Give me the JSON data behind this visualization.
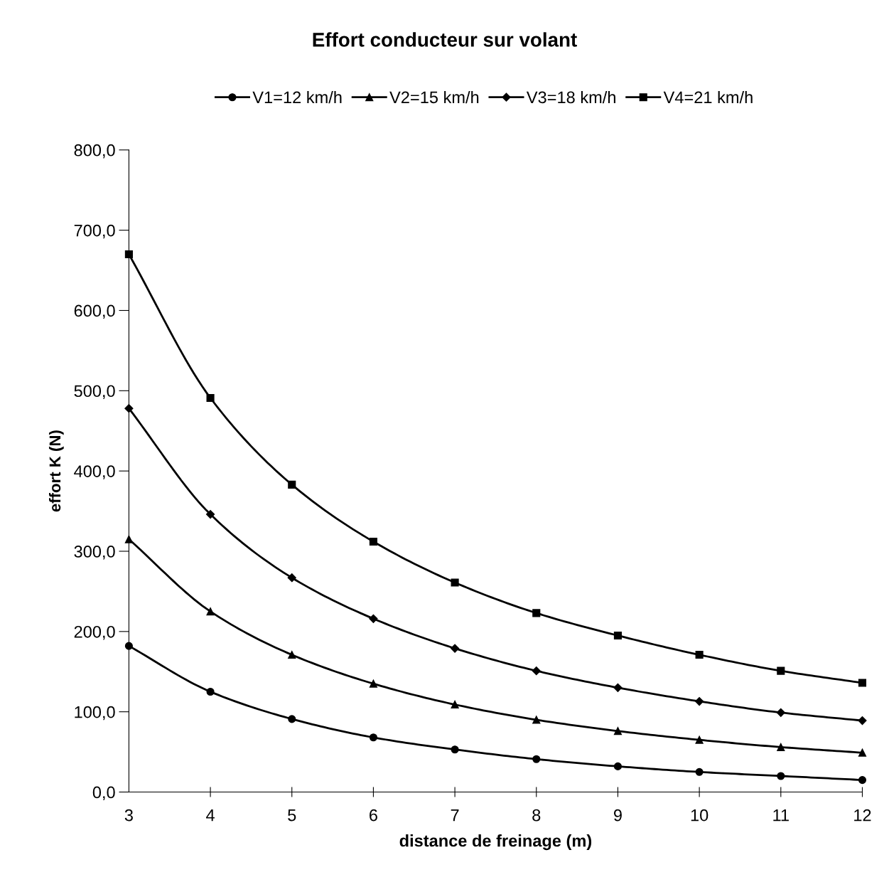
{
  "chart_data": {
    "type": "line",
    "title": "Effort conducteur sur volant",
    "xlabel": "distance de freinage (m)",
    "ylabel": "effort K (N)",
    "x": [
      3,
      4,
      5,
      6,
      7,
      8,
      9,
      10,
      11,
      12
    ],
    "series": [
      {
        "name": "V1=12 km/h",
        "color": "#000000",
        "marker": "circle",
        "values": [
          182,
          125,
          91,
          68,
          53,
          41,
          32,
          25,
          20,
          15
        ]
      },
      {
        "name": "V2=15 km/h",
        "color": "#000000",
        "marker": "triangle",
        "values": [
          315,
          225,
          171,
          135,
          109,
          90,
          76,
          65,
          56,
          49
        ]
      },
      {
        "name": "V3=18 km/h",
        "color": "#000000",
        "marker": "diamond",
        "values": [
          478,
          346,
          267,
          216,
          179,
          151,
          130,
          113,
          99,
          89
        ]
      },
      {
        "name": "V4=21 km/h",
        "color": "#000000",
        "marker": "square",
        "values": [
          670,
          491,
          383,
          312,
          261,
          223,
          195,
          171,
          151,
          136
        ]
      }
    ],
    "xlim": [
      3,
      12
    ],
    "xticks": [
      3,
      4,
      5,
      6,
      7,
      8,
      9,
      10,
      11,
      12
    ],
    "ylim": [
      0,
      800
    ],
    "yticks": [
      {
        "value": 0,
        "label": "0,0"
      },
      {
        "value": 100,
        "label": "100,0"
      },
      {
        "value": 200,
        "label": "200,0"
      },
      {
        "value": 300,
        "label": "300,0"
      },
      {
        "value": 400,
        "label": "400,0"
      },
      {
        "value": 500,
        "label": "500,0"
      },
      {
        "value": 600,
        "label": "600,0"
      },
      {
        "value": 700,
        "label": "700,0"
      },
      {
        "value": 800,
        "label": "800,0"
      }
    ],
    "grid": false,
    "legend": "top",
    "line_style": "solid"
  }
}
